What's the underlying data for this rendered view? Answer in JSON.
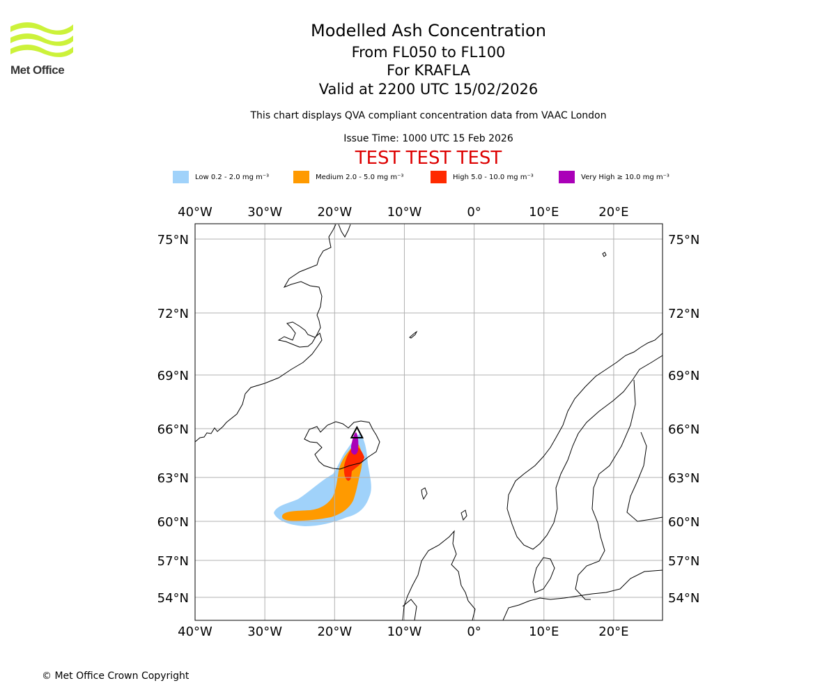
{
  "brand": {
    "logo_text": "Met Office",
    "logo_color": "#ccf23a"
  },
  "header": {
    "title": "Modelled Ash Concentration",
    "levels": "From FL050 to FL100",
    "volcano": "For KRAFLA",
    "valid": "Valid at 2200 UTC 15/02/2026",
    "description": "This chart displays QVA compliant concentration data from VAAC London",
    "issue_time": "Issue Time: 1000 UTC 15 Feb 2026",
    "test_banner": "TEST TEST TEST"
  },
  "legend": [
    {
      "label": "Low 0.2 - 2.0 mg m⁻³",
      "color": "#a0d2fa"
    },
    {
      "label": "Medium 2.0 - 5.0 mg m⁻³",
      "color": "#ff9a00"
    },
    {
      "label": "High 5.0 - 10.0 mg m⁻³",
      "color": "#ff2a00"
    },
    {
      "label": "Very High  ≥  10.0 mg m⁻³",
      "color": "#aa00b8"
    }
  ],
  "map": {
    "lon_range": [
      -40,
      27
    ],
    "lat_range": [
      52.5,
      76
    ],
    "lon_ticks": [
      {
        "value": -40,
        "label": "40°W"
      },
      {
        "value": -30,
        "label": "30°W"
      },
      {
        "value": -20,
        "label": "20°W"
      },
      {
        "value": -10,
        "label": "10°W"
      },
      {
        "value": 0,
        "label": "0°"
      },
      {
        "value": 10,
        "label": "10°E"
      },
      {
        "value": 20,
        "label": "20°E"
      }
    ],
    "lat_ticks": [
      {
        "value": 75,
        "label": "75°N"
      },
      {
        "value": 72,
        "label": "72°N"
      },
      {
        "value": 69,
        "label": "69°N"
      },
      {
        "value": 66,
        "label": "66°N"
      },
      {
        "value": 63,
        "label": "63°N"
      },
      {
        "value": 60,
        "label": "60°N"
      },
      {
        "value": 57,
        "label": "57°N"
      },
      {
        "value": 54,
        "label": "54°N"
      }
    ],
    "volcano_marker": {
      "name": "KRAFLA",
      "lon": -16.8,
      "lat": 65.7
    },
    "colors": {
      "grid": "#b0b0b0",
      "coast": "#000000"
    }
  },
  "footer": {
    "copyright": "© Met Office Crown Copyright"
  }
}
